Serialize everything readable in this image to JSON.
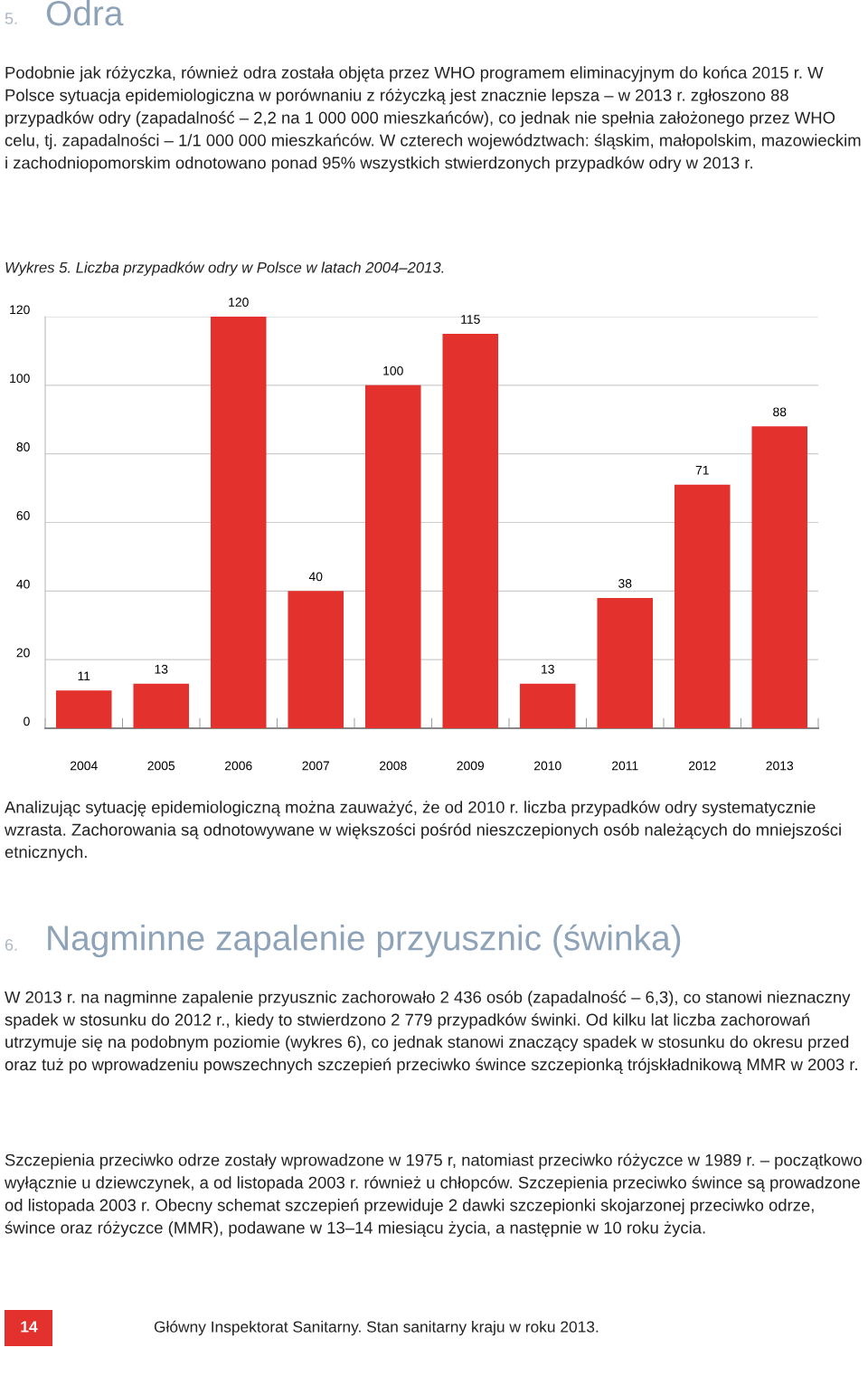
{
  "chart_data": {
    "type": "bar",
    "title": "Wykres 5. Liczba przypadków odry w Polsce w latach 2004–2013.",
    "categories": [
      "2004",
      "2005",
      "2006",
      "2007",
      "2008",
      "2009",
      "2010",
      "2011",
      "2012",
      "2013"
    ],
    "values": [
      11,
      13,
      120,
      40,
      100,
      115,
      13,
      38,
      71,
      88
    ],
    "color": "#e3312d",
    "data_labels": true,
    "grid": "y",
    "ylim": [
      0,
      120
    ],
    "yticks": [
      0,
      20,
      40,
      60,
      80,
      100,
      120
    ],
    "annotations": [
      "5.",
      "Odra",
      "Podobnie jak różyczka, również odra została objęta przez WHO programem eliminacyjnym do końca 2015 r. W Polsce sytuacja epidemiologiczna w porównaniu z różyczką jest znacznie lepsza – w 2013 r. zgłoszono 88 przypadków odry (zapadalność – 2,2 na 1 000 000 mieszkańców), co jednak nie spełnia założonego przez WHO celu, tj. zapadalności – 1/1 000 000 mieszkańców. W czterech województwach: śląskim, małopolskim, mazowieckim i zachodniopomorskim odnotowano ponad 95% wszystkich stwierdzonych przypadków odry w 2013 r.",
      "Analizując sytuację epidemiologiczną można zauważyć, że od 2010 r. liczba przypadków odry systematycznie wzrasta. Zachorowania są odnotowywane w większości pośród nieszczepionych osób należących do mniejszości etnicznych.",
      "6.",
      "Nagminne zapalenie przyusznic (świnka)",
      "W 2013 r. na nagminne zapalenie przyusznic zachorowało 2 436 osób (zapadalność – 6,3), co stanowi nieznaczny spadek w stosunku do 2012 r., kiedy to stwierdzono 2 779 przypadków świnki. Od kilku lat liczba zachorowań utrzymuje się na podobnym poziomie (wykres 6), co jednak stanowi znaczący spadek w stosunku do okresu przed oraz tuż po wprowadzeniu powszechnych szczepień przeciwko śwince szczepionką trójskładnikową MMR w 2003 r.",
      "Szczepienia przeciwko odrze zostały wprowadzone w 1975 r, natomiast przeciwko różyczce w 1989 r. – początkowo wyłącznie u dziewczynek, a od listopada 2003 r. również u chłopców. Szczepienia przeciwko śwince są prowadzone od listopada 2003 r. Obecny schemat szczepień przewiduje 2 dawki szczepionki skojarzonej przeciwko odrze, śwince oraz różyczce (MMR), podawane w 13–14 miesiącu życia, a następnie w 10 roku życia.",
      "14",
      "Główny Inspektorat Sanitarny. Stan sanitarny kraju w roku 2013."
    ]
  }
}
